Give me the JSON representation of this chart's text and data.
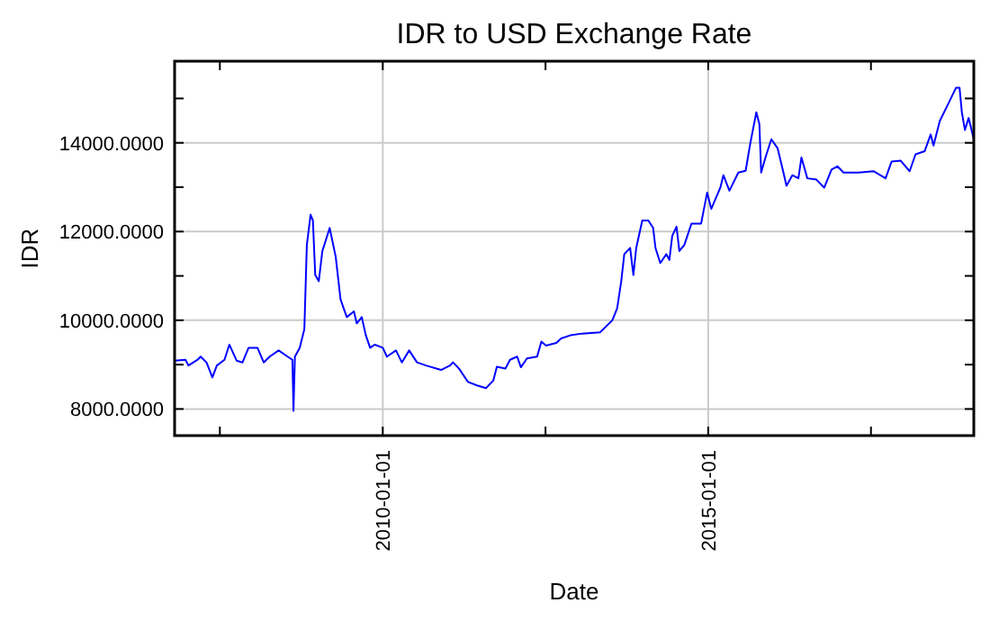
{
  "chart_data": {
    "type": "line",
    "title": "IDR to USD Exchange Rate",
    "xlabel": "Date",
    "ylabel": "IDR",
    "grid": true,
    "marker": "none",
    "line_style": "solid",
    "xlim": [
      "2006-10-21",
      "2019-01-30"
    ],
    "xticks": [
      {
        "value": "2007-07-02",
        "label": null
      },
      "2010-01-01",
      {
        "value": "2012-07-02",
        "label": null
      },
      "2015-01-01",
      {
        "value": "2017-07-02",
        "label": null
      }
    ],
    "ylim": [
      7400,
      15840
    ],
    "yticks": [
      {
        "value": 8000,
        "label": "8000.0000"
      },
      {
        "value": 9000,
        "label": null
      },
      {
        "value": 10000,
        "label": "10000.0000"
      },
      {
        "value": 11000,
        "label": null
      },
      {
        "value": 12000,
        "label": "12000.0000"
      },
      {
        "value": 13000,
        "label": null
      },
      {
        "value": 14000,
        "label": "14000.0000"
      },
      {
        "value": 15000,
        "label": null
      }
    ],
    "series": [
      {
        "color": "#0000ff",
        "x": [
          "2006-10-21",
          "2006-12-21",
          "2007-01-07",
          "2007-02-27",
          "2007-03-16",
          "2007-04-18",
          "2007-05-21",
          "2007-06-15",
          "2007-07-28",
          "2007-08-24",
          "2007-10-04",
          "2007-11-06",
          "2007-12-10",
          "2008-01-29",
          "2008-03-04",
          "2008-04-06",
          "2008-05-27",
          "2008-07-16",
          "2008-08-12",
          "2008-08-18",
          "2008-08-26",
          "2008-09-22",
          "2008-10-18",
          "2008-11-01",
          "2008-11-22",
          "2008-12-05",
          "2008-12-18",
          "2009-01-07",
          "2009-01-27",
          "2009-03-09",
          "2009-04-12",
          "2009-05-09",
          "2009-06-13",
          "2009-07-23",
          "2009-08-08",
          "2009-09-05",
          "2009-09-28",
          "2009-10-22",
          "2009-11-18",
          "2010-01-01",
          "2010-01-24",
          "2010-03-16",
          "2010-04-18",
          "2010-05-29",
          "2010-07-12",
          "2010-09-01",
          "2010-11-24",
          "2011-01-13",
          "2011-01-30",
          "2011-03-05",
          "2011-04-24",
          "2011-06-14",
          "2011-08-03",
          "2011-09-13",
          "2011-10-03",
          "2011-11-20",
          "2011-12-16",
          "2012-01-25",
          "2012-02-15",
          "2012-03-20",
          "2012-05-16",
          "2012-06-09",
          "2012-07-05",
          "2012-09-01",
          "2012-09-28",
          "2012-11-18",
          "2013-01-23",
          "2013-05-05",
          "2013-07-12",
          "2013-08-08",
          "2013-08-31",
          "2013-09-17",
          "2013-10-20",
          "2013-11-07",
          "2013-11-23",
          "2013-12-27",
          "2014-01-30",
          "2014-02-26",
          "2014-03-11",
          "2014-04-07",
          "2014-05-11",
          "2014-05-28",
          "2014-06-13",
          "2014-07-07",
          "2014-07-23",
          "2014-08-20",
          "2014-09-29",
          "2014-11-22",
          "2014-12-26",
          "2015-01-18",
          "2015-03-10",
          "2015-03-27",
          "2015-04-30",
          "2015-06-19",
          "2015-07-30",
          "2015-08-26",
          "2015-09-28",
          "2015-10-15",
          "2015-10-25",
          "2015-11-18",
          "2015-12-21",
          "2016-01-25",
          "2016-02-27",
          "2016-03-15",
          "2016-04-17",
          "2016-05-21",
          "2016-06-07",
          "2016-07-10",
          "2016-08-30",
          "2016-10-13",
          "2016-11-23",
          "2016-12-26",
          "2017-01-29",
          "2017-04-24",
          "2017-07-16",
          "2017-09-22",
          "2017-10-26",
          "2017-12-15",
          "2018-02-04",
          "2018-03-09",
          "2018-04-29",
          "2018-06-02",
          "2018-06-18",
          "2018-07-23",
          "2018-09-11",
          "2018-10-22",
          "2018-11-11",
          "2018-11-24",
          "2018-12-11",
          "2019-01-01",
          "2019-01-30"
        ],
        "values": [
          9090,
          9110,
          8980,
          9110,
          9180,
          9050,
          8710,
          8980,
          9110,
          9450,
          9090,
          9050,
          9380,
          9380,
          9050,
          9180,
          9320,
          9180,
          9110,
          7960,
          9180,
          9380,
          9800,
          11700,
          12380,
          12250,
          11020,
          10880,
          11560,
          12080,
          11430,
          10470,
          10070,
          10200,
          9930,
          10070,
          9660,
          9380,
          9450,
          9380,
          9180,
          9320,
          9050,
          9320,
          9050,
          8980,
          8880,
          8980,
          9050,
          8910,
          8610,
          8530,
          8470,
          8640,
          8950,
          8910,
          9110,
          9180,
          8940,
          9140,
          9180,
          9520,
          9430,
          9490,
          9590,
          9660,
          9700,
          9730,
          10000,
          10270,
          10880,
          11490,
          11630,
          11020,
          11630,
          12250,
          12250,
          12080,
          11630,
          11290,
          11490,
          11360,
          11900,
          12110,
          11560,
          11700,
          12180,
          12180,
          12880,
          12510,
          12990,
          13270,
          12920,
          13330,
          13370,
          14010,
          14690,
          14420,
          13330,
          13670,
          14080,
          13880,
          13330,
          13030,
          13270,
          13200,
          13670,
          13200,
          13170,
          12990,
          13400,
          13470,
          13330,
          13330,
          13360,
          13200,
          13580,
          13600,
          13360,
          13740,
          13810,
          14190,
          13940,
          14490,
          14900,
          15240,
          15240,
          14690,
          14290,
          14560,
          14080
        ]
      }
    ]
  }
}
